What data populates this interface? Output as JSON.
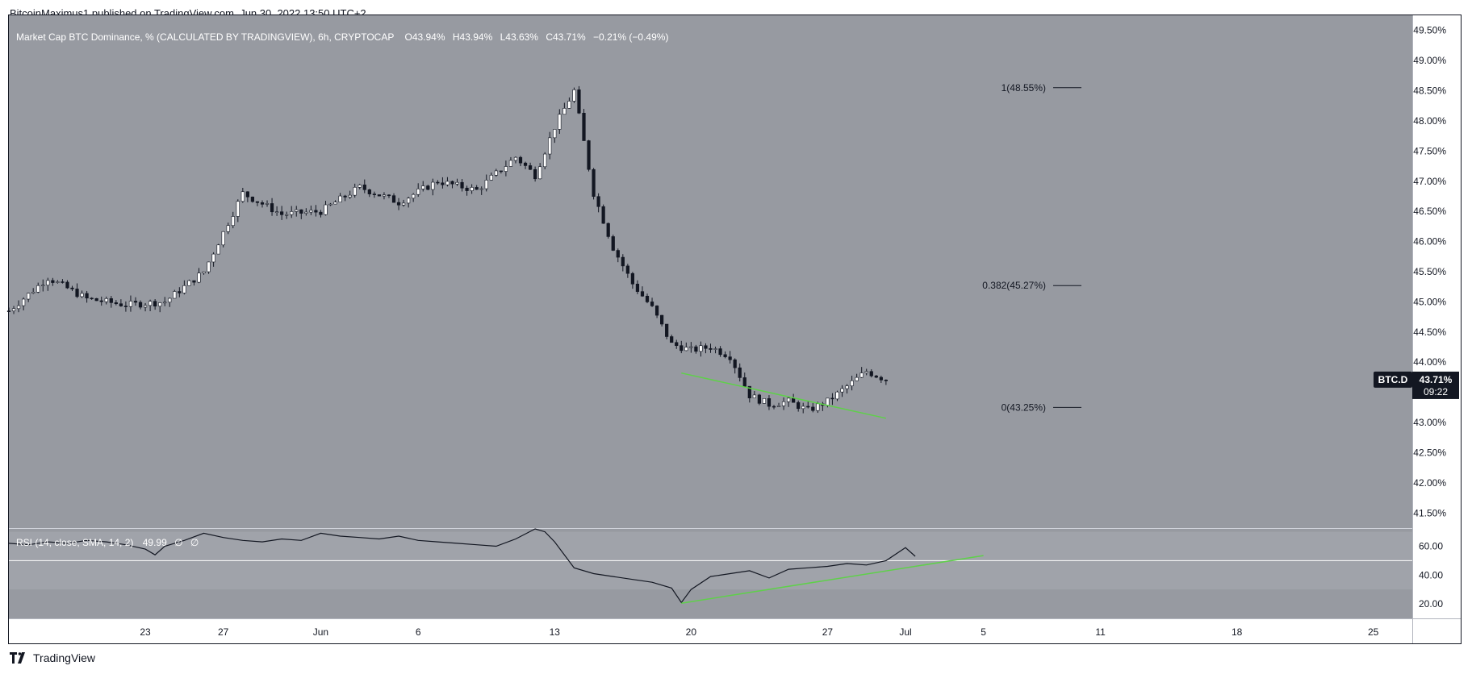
{
  "header": {
    "publisher_line": "BitcoinMaximus1 published on TradingView.com, Jun 30, 2022 13:50 UTC+2"
  },
  "footer": {
    "brand": "TradingView"
  },
  "colors": {
    "background": "#979aa1",
    "rsi_band": "#a0a3aa",
    "axis_bg": "#ffffff",
    "up_candle": "#ffffff",
    "down_candle": "#131722",
    "trendline": "#5fd04a",
    "label_bg": "#131722"
  },
  "chart_data": [
    {
      "type": "candlestick",
      "legend": {
        "title": "Market Cap BTC Dominance, % (CALCULATED BY TRADINGVIEW), 6h, CRYPTOCAP",
        "o_label": "O",
        "o": "43.94%",
        "h_label": "H",
        "h": "43.94%",
        "l_label": "L",
        "l": "43.63%",
        "c_label": "C",
        "c": "43.71%",
        "change": "−0.21% (−0.49%)"
      },
      "y_ticks": [
        "49.50%",
        "49.00%",
        "48.50%",
        "48.00%",
        "47.50%",
        "47.00%",
        "46.50%",
        "46.00%",
        "45.50%",
        "45.00%",
        "44.50%",
        "44.00%",
        "43.50%",
        "43.00%",
        "42.50%",
        "42.00%",
        "41.50%"
      ],
      "y_tick_values": [
        49.5,
        49.0,
        48.5,
        48.0,
        47.5,
        47.0,
        46.5,
        46.0,
        45.5,
        45.0,
        44.5,
        44.0,
        43.5,
        43.0,
        42.5,
        42.0,
        41.5
      ],
      "ylim": [
        41.25,
        49.75
      ],
      "x_ticks": [
        "23",
        "27",
        "Jun",
        "6",
        "13",
        "20",
        "27",
        "Jul",
        "5",
        "11",
        "18",
        "25"
      ],
      "x_tick_days": [
        23,
        27,
        32,
        37,
        44,
        51,
        58,
        62,
        66,
        72,
        79,
        86
      ],
      "x_domain_days": [
        16,
        88
      ],
      "close_path_days": [
        16,
        18,
        20,
        22,
        24,
        26,
        28,
        30,
        32,
        34,
        36,
        38,
        40,
        42,
        43,
        44,
        45,
        46,
        47,
        48,
        49,
        50,
        51,
        52,
        53,
        54,
        55,
        56,
        57,
        58,
        59,
        60,
        61
      ],
      "close_path_values": [
        44.85,
        45.4,
        45.05,
        44.95,
        45.0,
        45.5,
        46.8,
        46.45,
        46.5,
        46.9,
        46.65,
        47.0,
        46.85,
        47.4,
        47.1,
        47.9,
        48.5,
        46.8,
        45.9,
        45.3,
        44.9,
        44.3,
        44.2,
        44.25,
        44.1,
        43.45,
        43.3,
        43.35,
        43.2,
        43.35,
        43.6,
        43.85,
        43.71
      ],
      "fib_levels": [
        {
          "ratio": 1,
          "label": "1(48.55%)",
          "value": 48.55
        },
        {
          "ratio": 0.382,
          "label": "0.382(45.27%)",
          "value": 45.27
        },
        {
          "ratio": 0,
          "label": "0(43.25%)",
          "value": 43.25
        }
      ],
      "trendline": {
        "x_days": [
          50.5,
          61
        ],
        "y_values": [
          43.82,
          43.07
        ]
      },
      "last_price": {
        "symbol": "BTC.D",
        "value": "43.71%",
        "countdown": "09:22"
      }
    },
    {
      "type": "line",
      "legend": {
        "title": "RSI (14, close, SMA, 14, 2)",
        "value": "49.99",
        "extra1": "∅",
        "extra2": "∅"
      },
      "y_ticks": [
        "60.00",
        "40.00",
        "20.00"
      ],
      "y_tick_values": [
        60,
        40,
        20
      ],
      "ylim": [
        10,
        72
      ],
      "band": [
        30,
        70
      ],
      "x_days": [
        16,
        17,
        18,
        19,
        20,
        21,
        22,
        23,
        23.5,
        24,
        25,
        26,
        27,
        28,
        29,
        30,
        31,
        32,
        33,
        34,
        35,
        36,
        37,
        38,
        39,
        40,
        41,
        42,
        43,
        43.5,
        44,
        45,
        46,
        47,
        48,
        49,
        50,
        50.5,
        51,
        52,
        53,
        54,
        55,
        56,
        57,
        58,
        59,
        60,
        61,
        62,
        62.5
      ],
      "values": [
        62,
        61,
        63,
        62,
        64,
        63,
        61,
        58,
        54,
        60,
        64,
        69,
        66,
        64,
        63,
        65,
        64,
        69,
        67,
        66,
        65,
        67,
        64,
        63,
        62,
        61,
        60,
        65,
        72,
        70,
        63,
        45,
        41,
        39,
        37,
        35,
        31,
        21,
        30,
        39,
        41,
        43,
        38,
        44,
        45,
        46,
        48,
        47,
        50,
        59,
        53
      ],
      "reference_line": 50,
      "trendline": {
        "x_days": [
          50.5,
          66
        ],
        "y_values": [
          20.5,
          53.5
        ]
      }
    }
  ]
}
